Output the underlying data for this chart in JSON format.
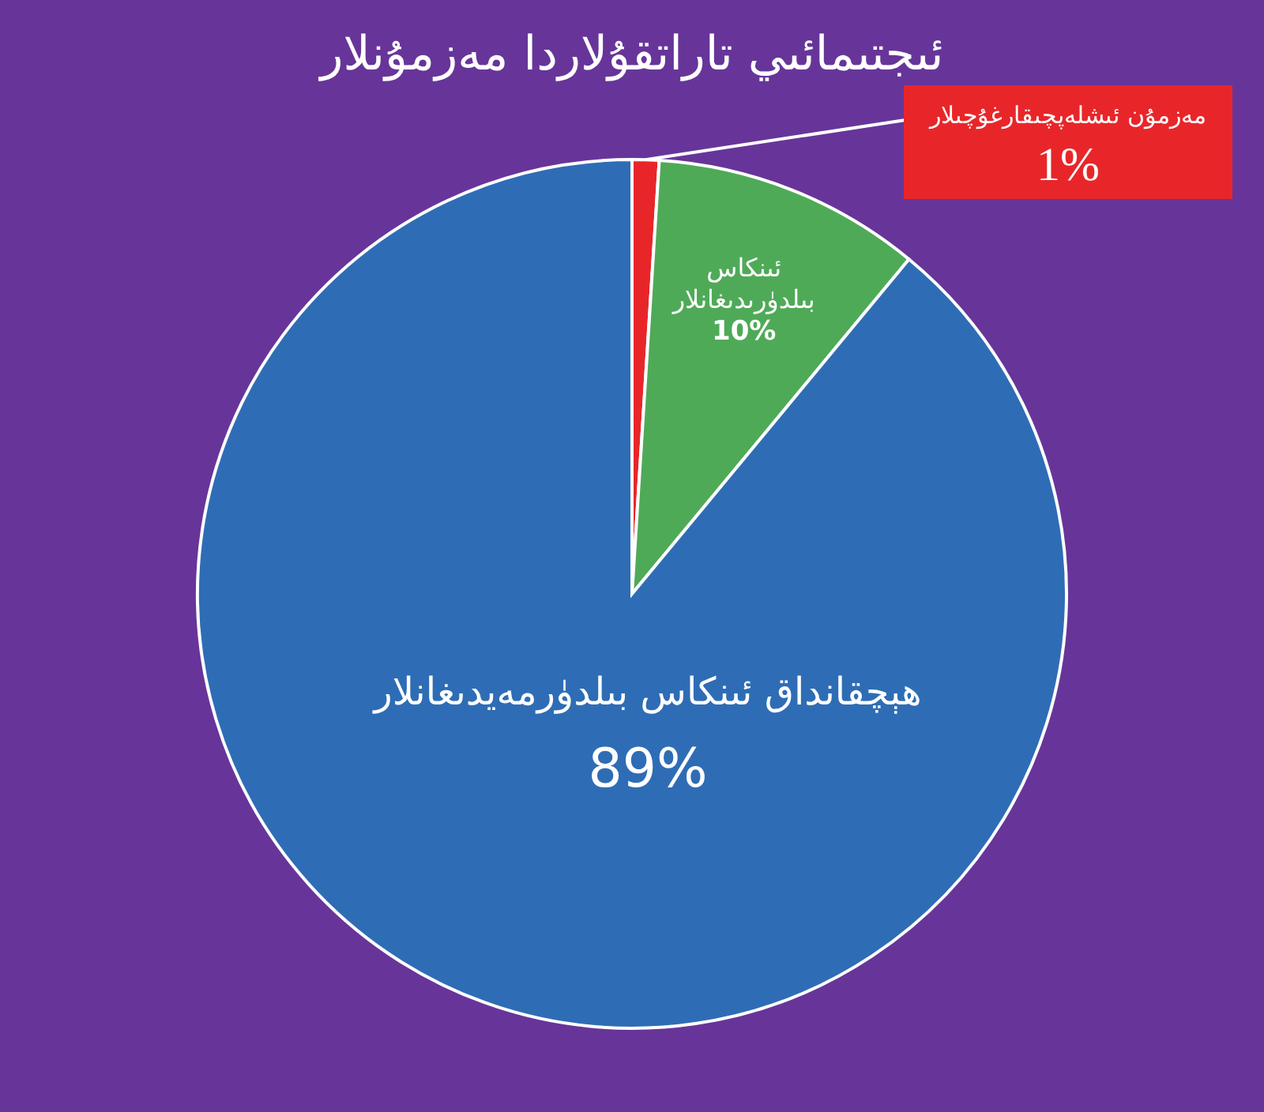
{
  "chart_data": {
    "type": "pie",
    "title": "ئىجتىمائىي تاراتقۇلاردا مەزمۇنلار",
    "categories": [
      "مەزمۇن ئىشلەپچىقارغۇچىلار",
      "ئىنكاس بىلدۈرىدىغانلار",
      "ھېچقانداق ئىنكاس بىلدۈرمەيدىغانلار"
    ],
    "values": [
      1,
      10,
      89
    ],
    "value_labels": [
      "1%",
      "10%",
      "89%"
    ],
    "colors": [
      "#e8262a",
      "#4faa58",
      "#2e6db5"
    ]
  }
}
